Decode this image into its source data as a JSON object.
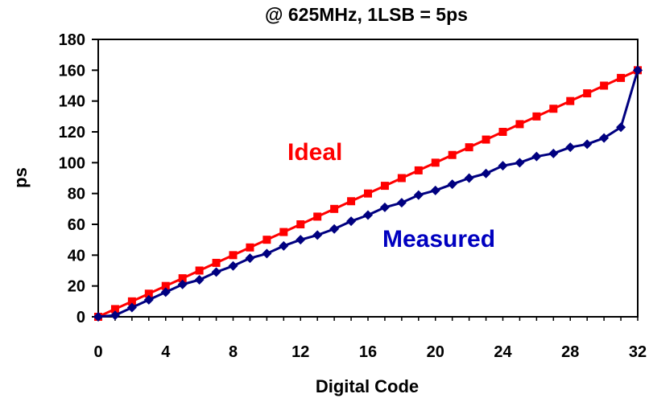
{
  "chart_data": {
    "type": "line",
    "title": "@ 625MHz, 1LSB = 5ps",
    "xlabel": "Digital Code",
    "ylabel": "ps",
    "xlim": [
      0,
      32
    ],
    "ylim": [
      0,
      180
    ],
    "x_ticks": [
      0,
      4,
      8,
      12,
      16,
      20,
      24,
      28,
      32
    ],
    "y_ticks": [
      0,
      20,
      40,
      60,
      80,
      100,
      120,
      140,
      160,
      180
    ],
    "grid": false,
    "legend": "none",
    "x": [
      0,
      1,
      2,
      3,
      4,
      5,
      6,
      7,
      8,
      9,
      10,
      11,
      12,
      13,
      14,
      15,
      16,
      17,
      18,
      19,
      20,
      21,
      22,
      23,
      24,
      25,
      26,
      27,
      28,
      29,
      30,
      31,
      32
    ],
    "series": [
      {
        "name": "Ideal",
        "color": "#ff0000",
        "marker": "square",
        "values": [
          0,
          5,
          10,
          15,
          20,
          25,
          30,
          35,
          40,
          45,
          50,
          55,
          60,
          65,
          70,
          75,
          80,
          85,
          90,
          95,
          100,
          105,
          110,
          115,
          120,
          125,
          130,
          135,
          140,
          145,
          150,
          155,
          160
        ]
      },
      {
        "name": "Measured",
        "color": "#000080",
        "marker": "diamond",
        "values": [
          0,
          1,
          6,
          11,
          16,
          21,
          24,
          29,
          33,
          38,
          41,
          46,
          50,
          53,
          57,
          62,
          66,
          71,
          74,
          79,
          82,
          86,
          90,
          93,
          98,
          100,
          104,
          106,
          110,
          112,
          116,
          123,
          160
        ]
      }
    ]
  }
}
